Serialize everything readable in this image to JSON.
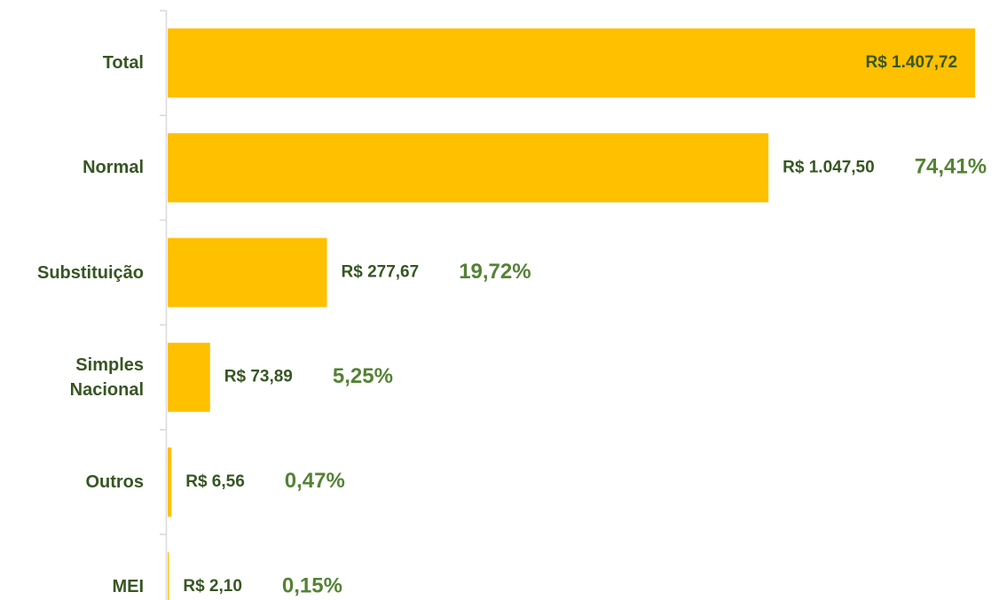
{
  "chart_data": {
    "type": "hbar",
    "categories": [
      "Total",
      "Normal",
      "Substituição",
      "Simples Nacional",
      "Outros",
      "MEI"
    ],
    "values": [
      1407.72,
      1047.5,
      277.67,
      73.89,
      6.56,
      2.1
    ],
    "value_labels": [
      "R$ 1.407,72",
      "R$ 1.047,50",
      "R$ 277,67",
      "R$ 73,89",
      "R$ 6,56",
      "R$ 2,10"
    ],
    "shares": [
      null,
      74.41,
      19.72,
      5.25,
      0.47,
      0.15
    ],
    "share_labels": [
      null,
      "74,41%",
      "19,72%",
      "5,25%",
      "0,47%",
      "0,15%"
    ],
    "color": "#ffc000",
    "xlim": [
      0,
      1410
    ]
  }
}
